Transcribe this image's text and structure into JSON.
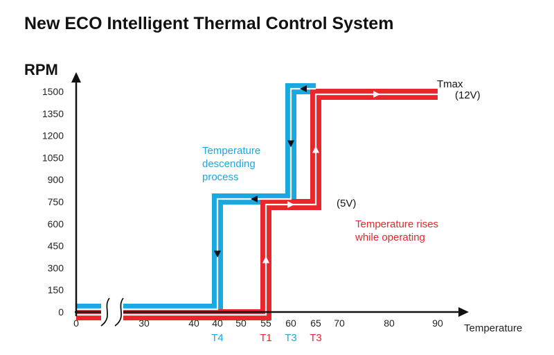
{
  "chart_data": {
    "type": "line",
    "title": "New ECO Intelligent Thermal Control System",
    "ylabel": "RPM",
    "xlabel": "Temperature",
    "y_ticks": [
      0,
      150,
      300,
      450,
      600,
      750,
      900,
      1050,
      1200,
      1350,
      1500
    ],
    "x_ticks": [
      "0",
      "30",
      "40",
      "40",
      "50",
      "55",
      "60",
      "65",
      "70",
      "80",
      "90"
    ],
    "axis_break": true,
    "grid": false,
    "series": [
      {
        "name": "Temperature descending process",
        "color": "#1aa8e0",
        "direction": "descending",
        "points": [
          {
            "x": 0,
            "y": 0
          },
          {
            "x": 40,
            "y": 0
          },
          {
            "x": 40,
            "y": 750
          },
          {
            "x": 60,
            "y": 750
          },
          {
            "x": 60,
            "y": 1500
          },
          {
            "x": 65,
            "y": 1500
          }
        ]
      },
      {
        "name": "Temperature rises while operating",
        "color": "#e8262b",
        "direction": "rising",
        "points": [
          {
            "x": 0,
            "y": 0
          },
          {
            "x": 55,
            "y": 0
          },
          {
            "x": 55,
            "y": 750
          },
          {
            "x": 65,
            "y": 750
          },
          {
            "x": 65,
            "y": 1500
          },
          {
            "x": 90,
            "y": 1500
          }
        ]
      }
    ],
    "threshold_labels": [
      {
        "text": "T4",
        "x": 40,
        "color": "#1aa8e0"
      },
      {
        "text": "T1",
        "x": 55,
        "color": "#e8262b"
      },
      {
        "text": "T3",
        "x": 60,
        "color": "#1aa8e0"
      },
      {
        "text": "T3",
        "x": 65,
        "color": "#e8262b"
      }
    ],
    "annotations": {
      "descending_lines": [
        "Temperature",
        "descending",
        "process"
      ],
      "rising_lines": [
        "Temperature rises",
        "while operating"
      ],
      "voltage_low": "(5V)",
      "tmax": "Tmax",
      "voltage_high": "(12V)"
    }
  }
}
